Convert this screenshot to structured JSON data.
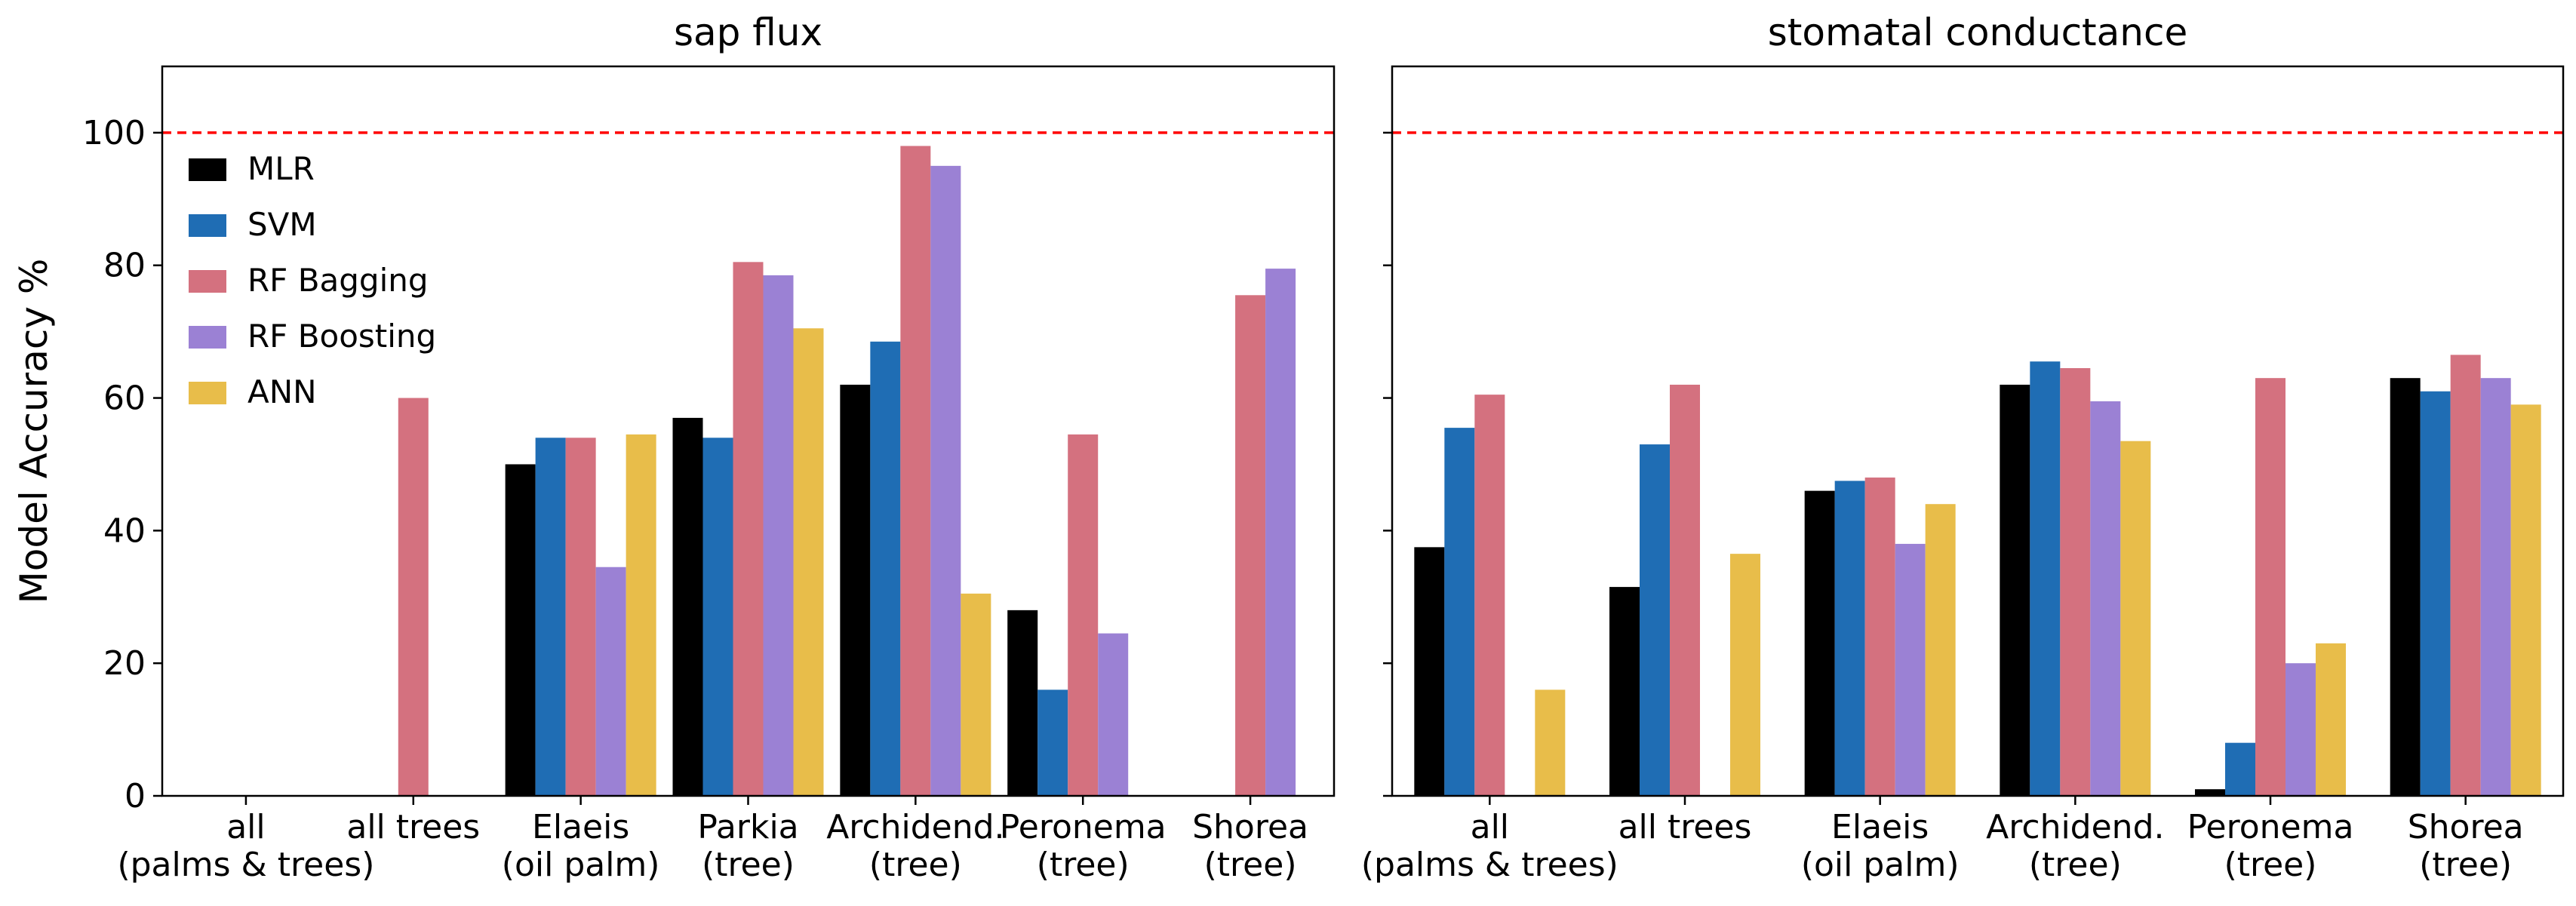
{
  "chart_data": {
    "type": "bar",
    "ylabel": "Model Accuracy %",
    "ylim": [
      0,
      110
    ],
    "yticks": [
      "0",
      "20",
      "40",
      "60",
      "80",
      "100"
    ],
    "reference_line": {
      "value": 100,
      "color": "#ff0000",
      "style": "dashed"
    },
    "legend_position": "upper-left",
    "series_names": [
      "MLR",
      "SVM",
      "RF Bagging",
      "RF Boosting",
      "ANN"
    ],
    "series_colors": [
      "#000000",
      "#1f6db4",
      "#d4717f",
      "#9b81d4",
      "#e8bd4a"
    ],
    "panels": [
      {
        "title": "sap flux",
        "categories": [
          [
            "all",
            "(palms & trees)"
          ],
          [
            "all trees"
          ],
          [
            "Elaeis",
            "(oil palm)"
          ],
          [
            "Parkia",
            "(tree)"
          ],
          [
            "Archidend.",
            "(tree)"
          ],
          [
            "Peronema",
            "(tree)"
          ],
          [
            "Shorea",
            "(tree)"
          ]
        ],
        "series": [
          {
            "name": "MLR",
            "values": [
              null,
              null,
              50,
              57,
              62,
              28,
              null
            ]
          },
          {
            "name": "SVM",
            "values": [
              null,
              null,
              54,
              54,
              68.5,
              16,
              null
            ]
          },
          {
            "name": "RF Bagging",
            "values": [
              null,
              60,
              54,
              80.5,
              98,
              54.5,
              75.5
            ]
          },
          {
            "name": "RF Boosting",
            "values": [
              null,
              null,
              34.5,
              78.5,
              95,
              24.5,
              79.5
            ]
          },
          {
            "name": "ANN",
            "values": [
              null,
              null,
              54.5,
              70.5,
              30.5,
              null,
              null
            ]
          }
        ]
      },
      {
        "title": "stomatal conductance",
        "categories": [
          [
            "all",
            "(palms & trees)"
          ],
          [
            "all trees"
          ],
          [
            "Elaeis",
            "(oil palm)"
          ],
          [
            "Archidend.",
            "(tree)"
          ],
          [
            "Peronema",
            "(tree)"
          ],
          [
            "Shorea",
            "(tree)"
          ]
        ],
        "series": [
          {
            "name": "MLR",
            "values": [
              37.5,
              31.5,
              46,
              62,
              1,
              63
            ]
          },
          {
            "name": "SVM",
            "values": [
              55.5,
              53,
              47.5,
              65.5,
              8,
              61
            ]
          },
          {
            "name": "RF Bagging",
            "values": [
              60.5,
              62,
              48,
              64.5,
              63,
              66.5
            ]
          },
          {
            "name": "RF Boosting",
            "values": [
              null,
              null,
              38,
              59.5,
              20,
              63
            ]
          },
          {
            "name": "ANN",
            "values": [
              16,
              36.5,
              44,
              53.5,
              23,
              59
            ]
          }
        ]
      }
    ]
  }
}
